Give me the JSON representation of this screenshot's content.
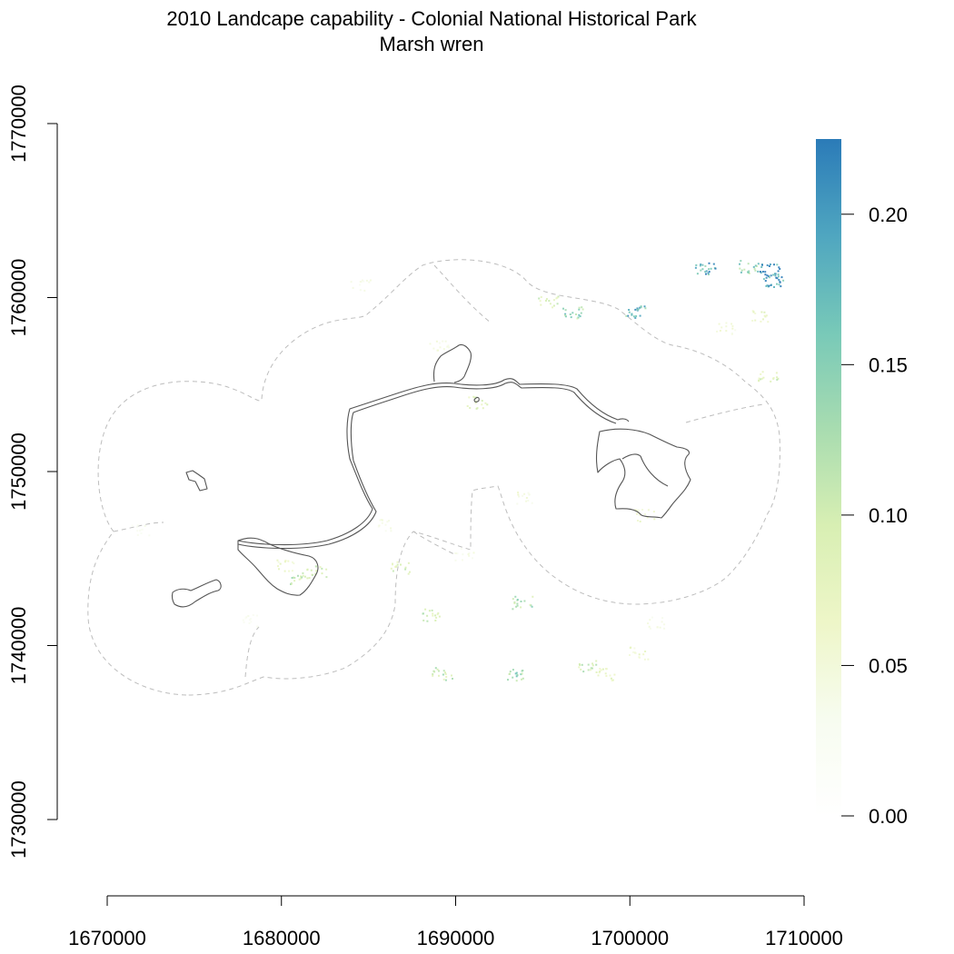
{
  "map": {
    "title_line1": "2010 Landcape capability - Colonial National Historical Park",
    "title_line2": "Marsh wren",
    "x_axis": {
      "range": [
        1668000,
        1710000
      ],
      "ticks": [
        1670000,
        1680000,
        1690000,
        1700000,
        1710000
      ],
      "tick_labels": [
        "1670000",
        "1680000",
        "1690000",
        "1700000",
        "1710000"
      ]
    },
    "y_axis": {
      "range": [
        1727500,
        1772500
      ],
      "ticks": [
        1730000,
        1740000,
        1750000,
        1760000,
        1770000
      ],
      "tick_labels": [
        "1730000",
        "1740000",
        "1750000",
        "1760000",
        "1770000"
      ]
    },
    "legend": {
      "type": "continuous colorbar",
      "placement": "right",
      "range": [
        0.0,
        0.225
      ],
      "ticks": [
        0.0,
        0.05,
        0.1,
        0.15,
        0.2
      ],
      "tick_labels": [
        "0.00",
        "0.05",
        "0.10",
        "0.15",
        "0.20"
      ],
      "colors": [
        "#ffffff",
        "#f7fcf0",
        "#eef6c8",
        "#d8efb3",
        "#a8dcb0",
        "#78c9b8",
        "#4fa6c0",
        "#2b7bb8"
      ]
    },
    "habitat_patches": [
      {
        "x": 1681000,
        "y": 1743900,
        "value": 0.11
      },
      {
        "x": 1682000,
        "y": 1744300,
        "value": 0.09
      },
      {
        "x": 1680200,
        "y": 1744600,
        "value": 0.07
      },
      {
        "x": 1691200,
        "y": 1754000,
        "value": 0.08
      },
      {
        "x": 1689000,
        "y": 1757300,
        "value": 0.05
      },
      {
        "x": 1686800,
        "y": 1744500,
        "value": 0.09
      },
      {
        "x": 1688500,
        "y": 1741800,
        "value": 0.1
      },
      {
        "x": 1689200,
        "y": 1738400,
        "value": 0.11
      },
      {
        "x": 1693500,
        "y": 1738300,
        "value": 0.14
      },
      {
        "x": 1693800,
        "y": 1742500,
        "value": 0.12
      },
      {
        "x": 1697500,
        "y": 1738800,
        "value": 0.1
      },
      {
        "x": 1698600,
        "y": 1738400,
        "value": 0.08
      },
      {
        "x": 1696700,
        "y": 1759200,
        "value": 0.14
      },
      {
        "x": 1695300,
        "y": 1759800,
        "value": 0.09
      },
      {
        "x": 1700300,
        "y": 1759200,
        "value": 0.17
      },
      {
        "x": 1704300,
        "y": 1761700,
        "value": 0.19
      },
      {
        "x": 1706800,
        "y": 1761800,
        "value": 0.14
      },
      {
        "x": 1708000,
        "y": 1761600,
        "value": 0.22
      },
      {
        "x": 1708200,
        "y": 1761000,
        "value": 0.21
      },
      {
        "x": 1707500,
        "y": 1759000,
        "value": 0.07
      },
      {
        "x": 1705500,
        "y": 1758300,
        "value": 0.05
      },
      {
        "x": 1707900,
        "y": 1755500,
        "value": 0.09
      },
      {
        "x": 1700800,
        "y": 1747500,
        "value": 0.06
      },
      {
        "x": 1693800,
        "y": 1748500,
        "value": 0.05
      },
      {
        "x": 1690500,
        "y": 1745300,
        "value": 0.04
      },
      {
        "x": 1678200,
        "y": 1741500,
        "value": 0.03
      },
      {
        "x": 1671800,
        "y": 1746700,
        "value": 0.03
      },
      {
        "x": 1686000,
        "y": 1747000,
        "value": 0.04
      },
      {
        "x": 1684500,
        "y": 1760700,
        "value": 0.04
      },
      {
        "x": 1700500,
        "y": 1739600,
        "value": 0.06
      },
      {
        "x": 1701500,
        "y": 1741300,
        "value": 0.04
      }
    ]
  }
}
